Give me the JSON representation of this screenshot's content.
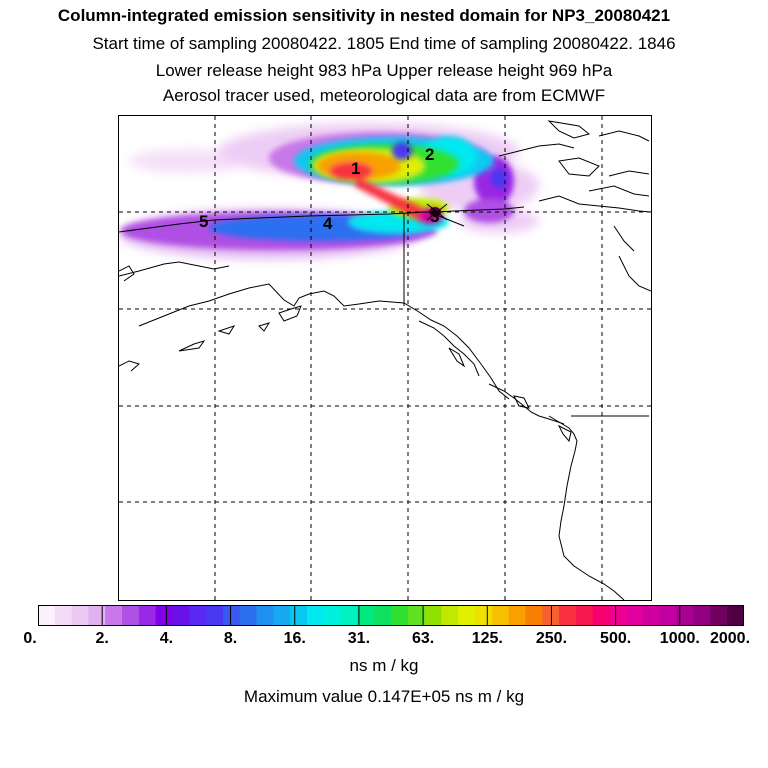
{
  "header": {
    "title": "Column-integrated emission sensitivity in nested domain for NP3_20080421",
    "sampling_line": "Start time of sampling 20080422.  1805     End time of sampling 20080422.  1846",
    "height_line": "Lower release height  983 hPa        Upper release height  969 hPa",
    "tracer_line": "Aerosol tracer used, meteorological data are from ECMWF"
  },
  "map": {
    "labels": [
      {
        "id": "1",
        "text": "1"
      },
      {
        "id": "2",
        "text": "2"
      },
      {
        "id": "3",
        "text": "3"
      },
      {
        "id": "4",
        "text": "4"
      },
      {
        "id": "5",
        "text": "5"
      }
    ]
  },
  "colorbar": {
    "ticks": [
      "0.",
      "2.",
      "4.",
      "8.",
      "16.",
      "31.",
      "63.",
      "125.",
      "250.",
      "500.",
      "1000.",
      "2000."
    ],
    "colors": [
      "#fcf0fc",
      "#f4dcf8",
      "#ecc8f4",
      "#e0b0f0",
      "#c878e8",
      "#b050e4",
      "#9a28e4",
      "#8000e8",
      "#6a10e8",
      "#5a28f0",
      "#4838f0",
      "#3858f0",
      "#2c70f0",
      "#1f90f0",
      "#16a8f0",
      "#08c8f0",
      "#00e8f0",
      "#00f0e0",
      "#00f0c0",
      "#00e880",
      "#10e060",
      "#30e030",
      "#60e020",
      "#90e000",
      "#c0e800",
      "#e0f000",
      "#f0e000",
      "#f8c000",
      "#f8a000",
      "#f88000",
      "#f86030",
      "#f83040",
      "#f81850",
      "#f80070",
      "#f00090",
      "#e000a0",
      "#d000a0",
      "#c000a0",
      "#a80090",
      "#900080",
      "#700060",
      "#500040"
    ],
    "units": "ns m / kg",
    "max_value_text": "Maximum value  0.147E+05 ns m / kg"
  }
}
